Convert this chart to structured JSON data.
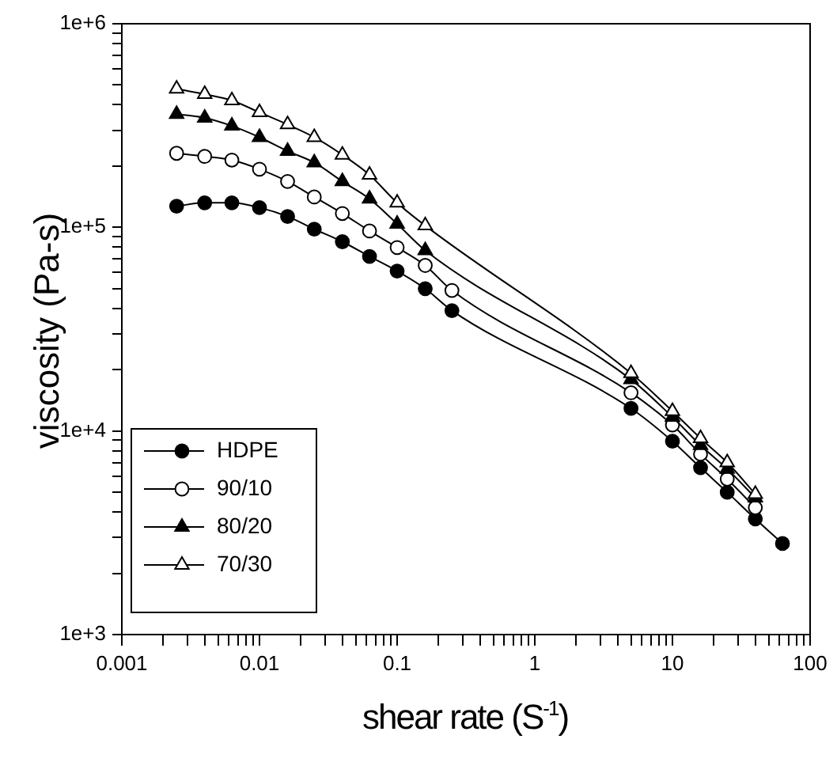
{
  "chart_data": {
    "type": "line",
    "xlabel": "shear rate (S$^{-1}$)",
    "ylabel": "viscosity (Pa-s)",
    "log": "xy",
    "grid": false,
    "legend": "bottom left",
    "line_style": "solid",
    "xlim": [
      0.001,
      100
    ],
    "ylim": [
      1000,
      1000000
    ],
    "xticks": [
      0.001,
      {
        "value": 0.002,
        "label": null
      },
      {
        "value": 0.003,
        "label": null
      },
      {
        "value": 0.004,
        "label": null
      },
      {
        "value": 0.005,
        "label": null
      },
      {
        "value": 0.006,
        "label": null
      },
      {
        "value": 0.007,
        "label": null
      },
      {
        "value": 0.008,
        "label": null
      },
      {
        "value": 0.009,
        "label": null
      },
      0.01,
      {
        "value": 0.02,
        "label": null
      },
      {
        "value": 0.03,
        "label": null
      },
      {
        "value": 0.04,
        "label": null
      },
      {
        "value": 0.05,
        "label": null
      },
      {
        "value": 0.06,
        "label": null
      },
      {
        "value": 0.07,
        "label": null
      },
      {
        "value": 0.08,
        "label": null
      },
      {
        "value": 0.09,
        "label": null
      },
      0.1,
      {
        "value": 0.2,
        "label": null
      },
      {
        "value": 0.3,
        "label": null
      },
      {
        "value": 0.4,
        "label": null
      },
      {
        "value": 0.5,
        "label": null
      },
      {
        "value": 0.6,
        "label": null
      },
      {
        "value": 0.7,
        "label": null
      },
      {
        "value": 0.8,
        "label": null
      },
      {
        "value": 0.9,
        "label": null
      },
      1,
      {
        "value": 2,
        "label": null
      },
      {
        "value": 3,
        "label": null
      },
      {
        "value": 4,
        "label": null
      },
      {
        "value": 5,
        "label": null
      },
      {
        "value": 6,
        "label": null
      },
      {
        "value": 7,
        "label": null
      },
      {
        "value": 8,
        "label": null
      },
      {
        "value": 9,
        "label": null
      },
      10,
      {
        "value": 20,
        "label": null
      },
      {
        "value": 30,
        "label": null
      },
      {
        "value": 40,
        "label": null
      },
      {
        "value": 50,
        "label": null
      },
      {
        "value": 60,
        "label": null
      },
      {
        "value": 70,
        "label": null
      },
      {
        "value": 80,
        "label": null
      },
      {
        "value": 90,
        "label": null
      },
      100
    ],
    "yticks": [
      {
        "value": 1000,
        "label": "1e+3"
      },
      {
        "value": 2000,
        "label": null
      },
      {
        "value": 3000,
        "label": null
      },
      {
        "value": 4000,
        "label": null
      },
      {
        "value": 5000,
        "label": null
      },
      {
        "value": 6000,
        "label": null
      },
      {
        "value": 7000,
        "label": null
      },
      {
        "value": 8000,
        "label": null
      },
      {
        "value": 9000,
        "label": null
      },
      {
        "value": 10000,
        "label": "1e+4"
      },
      {
        "value": 20000,
        "label": null
      },
      {
        "value": 30000,
        "label": null
      },
      {
        "value": 40000,
        "label": null
      },
      {
        "value": 50000,
        "label": null
      },
      {
        "value": 60000,
        "label": null
      },
      {
        "value": 70000,
        "label": null
      },
      {
        "value": 80000,
        "label": null
      },
      {
        "value": 90000,
        "label": null
      },
      {
        "value": 100000,
        "label": "1e+5"
      },
      {
        "value": 200000,
        "label": null
      },
      {
        "value": 300000,
        "label": null
      },
      {
        "value": 400000,
        "label": null
      },
      {
        "value": 500000,
        "label": null
      },
      {
        "value": 600000,
        "label": null
      },
      {
        "value": 700000,
        "label": null
      },
      {
        "value": 800000,
        "label": null
      },
      {
        "value": 900000,
        "label": null
      },
      {
        "value": 1000000,
        "label": "1e+6"
      }
    ],
    "series": [
      {
        "name": "HDPE",
        "color": "#000000",
        "marker": "circle",
        "x": [
          0.0025,
          0.004,
          0.0063,
          0.01,
          0.016,
          0.025,
          0.04,
          0.063,
          0.1,
          0.16,
          0.25,
          5,
          10,
          16,
          25,
          40,
          63
        ],
        "values": [
          127000,
          132000,
          132000,
          125000,
          113000,
          98000,
          85000,
          72000,
          61000,
          50000,
          39000,
          12900,
          8900,
          6600,
          5000,
          3700,
          2800
        ]
      },
      {
        "name": "90/10",
        "color": "#000000",
        "marker": "circle",
        "colors": [
          "#ffffff",
          "#ffffff",
          "#ffffff",
          "#ffffff",
          "#ffffff",
          "#ffffff",
          "#ffffff",
          "#ffffff",
          "#ffffff",
          "#ffffff",
          "#ffffff",
          "#ffffff",
          "#ffffff",
          "#ffffff",
          "#ffffff",
          "#ffffff"
        ],
        "x": [
          0.0025,
          0.004,
          0.0063,
          0.01,
          0.016,
          0.025,
          0.04,
          0.063,
          0.1,
          0.16,
          0.25,
          5,
          10,
          16,
          25,
          40
        ],
        "values": [
          231000,
          223000,
          214000,
          193000,
          168000,
          141000,
          117000,
          96000,
          79600,
          65000,
          49000,
          15400,
          10700,
          7700,
          5800,
          4200
        ]
      },
      {
        "name": "80/20",
        "color": "#000000",
        "marker": "triangle",
        "x": [
          0.0025,
          0.004,
          0.0063,
          0.01,
          0.016,
          0.025,
          0.04,
          0.063,
          0.1,
          0.16,
          5,
          10,
          16,
          25,
          40
        ],
        "values": [
          360000,
          345000,
          315000,
          277000,
          237000,
          208000,
          168000,
          138000,
          104000,
          77000,
          17900,
          11700,
          8500,
          6500,
          4700
        ]
      },
      {
        "name": "70/30",
        "color": "#000000",
        "marker": "triangle",
        "colors": [
          "#ffffff",
          "#ffffff",
          "#ffffff",
          "#ffffff",
          "#ffffff",
          "#ffffff",
          "#ffffff",
          "#ffffff",
          "#ffffff",
          "#ffffff",
          "#ffffff",
          "#ffffff",
          "#ffffff",
          "#ffffff",
          "#ffffff"
        ],
        "x": [
          0.0025,
          0.004,
          0.0063,
          0.01,
          0.016,
          0.025,
          0.04,
          0.063,
          0.1,
          0.16,
          5,
          10,
          16,
          25,
          40
        ],
        "values": [
          479000,
          451000,
          420000,
          367000,
          320000,
          277000,
          227000,
          181000,
          132000,
          102000,
          19200,
          12500,
          9200,
          7000,
          4900
        ]
      }
    ]
  }
}
